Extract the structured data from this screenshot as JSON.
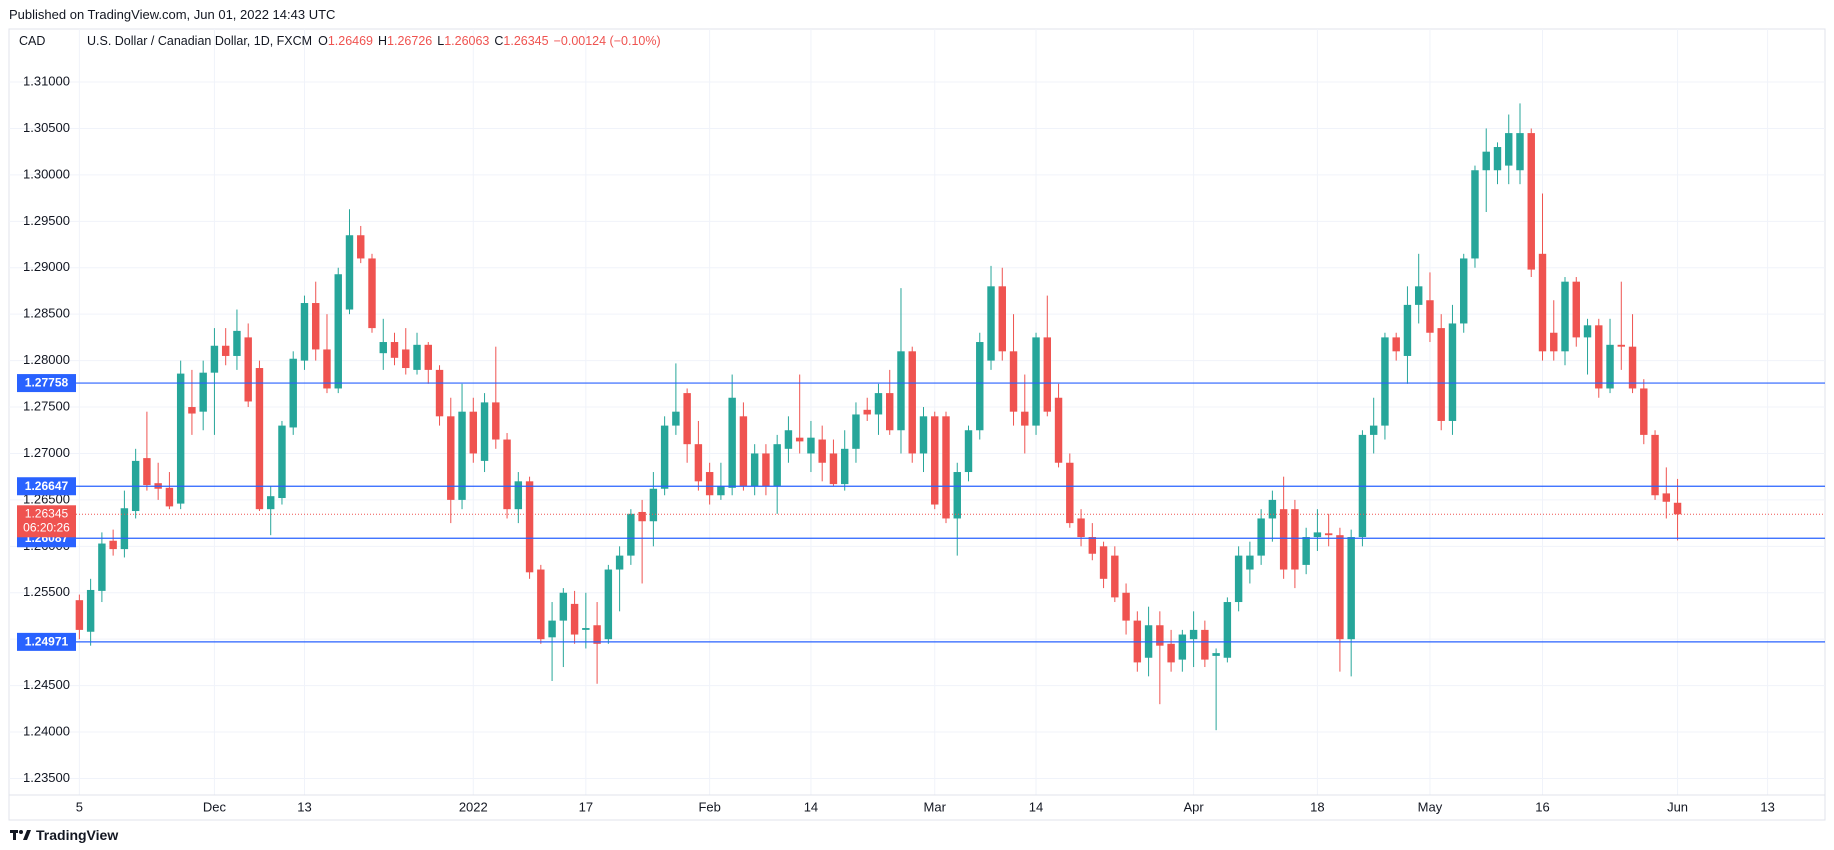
{
  "header": {
    "published": "Published on TradingView.com, Jun 01, 2022 14:43 UTC"
  },
  "chart_data": {
    "type": "candlestick",
    "currency": "CAD",
    "title": "U.S. Dollar / Canadian Dollar, 1D, FXCM",
    "ohlc_legend": [
      {
        "key": "O",
        "value": 1.26469
      },
      {
        "key": "H",
        "value": 1.26726
      },
      {
        "key": "L",
        "value": 1.26063
      },
      {
        "key": "C",
        "value": 1.26345
      }
    ],
    "change": "−0.00124 (−0.10%)",
    "open": [
      1.2542,
      1.2508,
      1.2552,
      1.2606,
      1.2597,
      1.2638,
      1.2695,
      1.2668,
      1.2663,
      1.2646,
      1.275,
      1.2745,
      1.2787,
      1.2816,
      1.2805,
      1.2825,
      1.2792,
      1.264,
      1.2652,
      1.2728,
      1.28,
      1.2862,
      1.2812,
      1.277,
      1.2855,
      1.2935,
      1.291,
      1.2808,
      1.282,
      1.2812,
      1.279,
      1.2817,
      1.279,
      1.274,
      1.265,
      1.2745,
      1.2692,
      1.2755,
      1.2715,
      1.264,
      1.267,
      1.2575,
      1.2502,
      1.252,
      1.2538,
      1.251,
      1.2515,
      1.25,
      1.2575,
      1.259,
      1.2637,
      1.2627,
      1.2662,
      1.273,
      1.2765,
      1.271,
      1.268,
      1.2655,
      1.2663,
      1.274,
      1.2665,
      1.27,
      1.2665,
      1.2705,
      1.2717,
      1.27,
      1.2715,
      1.27,
      1.2667,
      1.2705,
      1.2747,
      1.2742,
      1.2765,
      1.2725,
      1.281,
      1.27,
      1.274,
      1.274,
      1.263,
      1.268,
      1.2725,
      1.28,
      1.288,
      1.281,
      1.2745,
      1.273,
      1.2825,
      1.276,
      1.269,
      1.263,
      1.261,
      1.26,
      1.259,
      1.255,
      1.252,
      1.248,
      1.2515,
      1.2495,
      1.2478,
      1.25,
      1.251,
      1.2482,
      1.248,
      1.254,
      1.2575,
      1.259,
      1.263,
      1.264,
      1.264,
      1.258,
      1.261,
      1.2614,
      1.2612,
      1.25,
      1.261,
      1.272,
      1.273,
      1.2825,
      1.2805,
      1.286,
      1.2865,
      1.2835,
      1.2735,
      1.284,
      1.291,
      1.3005,
      1.3005,
      1.301,
      1.3005,
      1.3045,
      1.2915,
      1.283,
      1.281,
      1.2885,
      1.2825,
      1.2838,
      1.277,
      1.2817,
      1.2815,
      1.277,
      1.272,
      1.2657,
      1.26469
    ],
    "high": [
      1.2548,
      1.2565,
      1.2615,
      1.2618,
      1.266,
      1.2705,
      1.2745,
      1.269,
      1.268,
      1.28,
      1.279,
      1.28,
      1.2835,
      1.2835,
      1.2855,
      1.284,
      1.28,
      1.2665,
      1.2735,
      1.281,
      1.287,
      1.2885,
      1.285,
      1.29,
      1.2963,
      1.2945,
      1.2915,
      1.2845,
      1.283,
      1.2835,
      1.283,
      1.282,
      1.2795,
      1.276,
      1.2775,
      1.276,
      1.2765,
      1.2815,
      1.2722,
      1.268,
      1.2675,
      1.258,
      1.254,
      1.2555,
      1.2552,
      1.255,
      1.254,
      1.258,
      1.26,
      1.264,
      1.265,
      1.268,
      1.274,
      1.2797,
      1.277,
      1.2735,
      1.269,
      1.269,
      1.2785,
      1.2755,
      1.271,
      1.271,
      1.272,
      1.274,
      1.2785,
      1.2735,
      1.273,
      1.2715,
      1.2725,
      1.2755,
      1.276,
      1.2775,
      1.279,
      1.2878,
      1.2815,
      1.275,
      1.2745,
      1.2745,
      1.269,
      1.273,
      1.283,
      1.2902,
      1.29,
      1.285,
      1.2785,
      1.283,
      1.287,
      1.2775,
      1.27,
      1.264,
      1.2625,
      1.2605,
      1.26,
      1.256,
      1.253,
      1.2535,
      1.253,
      1.251,
      1.251,
      1.253,
      1.252,
      1.249,
      1.2545,
      1.26,
      1.2605,
      1.264,
      1.266,
      1.2675,
      1.265,
      1.262,
      1.264,
      1.2635,
      1.262,
      1.2618,
      1.2725,
      1.276,
      1.283,
      1.283,
      1.288,
      1.2915,
      1.2895,
      1.285,
      1.286,
      1.2915,
      1.301,
      1.305,
      1.3035,
      1.3065,
      1.3077,
      1.305,
      1.298,
      1.2865,
      1.289,
      1.289,
      1.2845,
      1.2845,
      1.2845,
      1.2885,
      1.285,
      1.278,
      1.2725,
      1.2685,
      1.26726
    ],
    "low": [
      1.25,
      1.2493,
      1.254,
      1.259,
      1.2588,
      1.263,
      1.266,
      1.265,
      1.264,
      1.264,
      1.272,
      1.2725,
      1.272,
      1.2795,
      1.279,
      1.275,
      1.2638,
      1.2612,
      1.2645,
      1.272,
      1.279,
      1.28,
      1.2765,
      1.2765,
      1.285,
      1.2905,
      1.283,
      1.279,
      1.2795,
      1.2785,
      1.2785,
      1.2775,
      1.273,
      1.2625,
      1.264,
      1.269,
      1.268,
      1.2705,
      1.263,
      1.2625,
      1.2565,
      1.2495,
      1.2455,
      1.247,
      1.2495,
      1.249,
      1.2452,
      1.2495,
      1.253,
      1.258,
      1.256,
      1.26,
      1.2655,
      1.272,
      1.269,
      1.266,
      1.2645,
      1.265,
      1.2655,
      1.266,
      1.2655,
      1.2655,
      1.2635,
      1.269,
      1.27,
      1.268,
      1.267,
      1.2665,
      1.266,
      1.269,
      1.2735,
      1.272,
      1.272,
      1.27,
      1.269,
      1.268,
      1.264,
      1.2625,
      1.259,
      1.267,
      1.2715,
      1.279,
      1.28,
      1.273,
      1.27,
      1.272,
      1.274,
      1.2685,
      1.262,
      1.26,
      1.2585,
      1.2555,
      1.254,
      1.2505,
      1.2465,
      1.246,
      1.243,
      1.2465,
      1.2465,
      1.247,
      1.247,
      1.2402,
      1.2475,
      1.253,
      1.256,
      1.258,
      1.2605,
      1.2565,
      1.2555,
      1.257,
      1.2595,
      1.26,
      1.2465,
      1.246,
      1.26,
      1.27,
      1.2715,
      1.28,
      1.2775,
      1.284,
      1.282,
      1.2725,
      1.272,
      1.283,
      1.29,
      1.296,
      1.299,
      1.299,
      1.299,
      1.289,
      1.28,
      1.28,
      1.2795,
      1.2815,
      1.2785,
      1.276,
      1.2765,
      1.279,
      1.2765,
      1.271,
      1.265,
      1.263,
      1.26063
    ],
    "close": [
      1.251,
      1.2553,
      1.2603,
      1.2597,
      1.2641,
      1.2692,
      1.2666,
      1.2662,
      1.2643,
      1.2786,
      1.2743,
      1.2787,
      1.2816,
      1.2805,
      1.2832,
      1.2756,
      1.264,
      1.2654,
      1.273,
      1.2802,
      1.2862,
      1.2812,
      1.277,
      1.2893,
      1.2935,
      1.291,
      1.2835,
      1.282,
      1.2803,
      1.2792,
      1.2817,
      1.279,
      1.274,
      1.265,
      1.2745,
      1.27,
      1.2755,
      1.2715,
      1.264,
      1.267,
      1.2572,
      1.25,
      1.252,
      1.255,
      1.2505,
      1.2512,
      1.2495,
      1.2575,
      1.259,
      1.2635,
      1.2627,
      1.2662,
      1.273,
      1.2745,
      1.271,
      1.267,
      1.2655,
      1.2665,
      1.276,
      1.2665,
      1.27,
      1.2665,
      1.271,
      1.2725,
      1.2713,
      1.2717,
      1.269,
      1.2667,
      1.2705,
      1.2742,
      1.2742,
      1.2765,
      1.2725,
      1.281,
      1.27,
      1.274,
      1.2645,
      1.263,
      1.268,
      1.2725,
      1.282,
      1.288,
      1.281,
      1.2745,
      1.273,
      1.2825,
      1.2745,
      1.269,
      1.2625,
      1.261,
      1.2592,
      1.2565,
      1.2545,
      1.252,
      1.2475,
      1.2515,
      1.2493,
      1.2475,
      1.2505,
      1.251,
      1.2478,
      1.2485,
      1.254,
      1.259,
      1.259,
      1.263,
      1.265,
      1.2575,
      1.2575,
      1.261,
      1.2615,
      1.2612,
      1.25,
      1.261,
      1.272,
      1.273,
      1.2825,
      1.281,
      1.286,
      1.288,
      1.283,
      1.2735,
      1.284,
      1.291,
      1.3005,
      1.3025,
      1.303,
      1.3045,
      1.3045,
      1.2898,
      1.281,
      1.281,
      1.2885,
      1.2825,
      1.2838,
      1.277,
      1.2817,
      1.2815,
      1.277,
      1.272,
      1.2655,
      1.2648,
      1.26345
    ],
    "up_color": "#26a69a",
    "down_color": "#ef5350",
    "xlim": [
      -0.3,
      155.1
    ],
    "xticks": [
      {
        "value": 0,
        "label": "5"
      },
      {
        "value": 12,
        "label": "Dec"
      },
      {
        "value": 20,
        "label": "13"
      },
      {
        "value": 35,
        "label": "2022"
      },
      {
        "value": 45,
        "label": "17"
      },
      {
        "value": 56,
        "label": "Feb"
      },
      {
        "value": 65,
        "label": "14"
      },
      {
        "value": 76,
        "label": "Mar"
      },
      {
        "value": 85,
        "label": "14"
      },
      {
        "value": 99,
        "label": "Apr"
      },
      {
        "value": 110,
        "label": "18"
      },
      {
        "value": 120,
        "label": "May"
      },
      {
        "value": 130,
        "label": "16"
      },
      {
        "value": 142,
        "label": "Jun"
      },
      {
        "value": 150,
        "label": "13"
      }
    ],
    "ylim": [
      1.23322,
      1.31571
    ],
    "yticks": [
      {
        "value": 1.235,
        "label": "1.23500"
      },
      {
        "value": 1.24,
        "label": "1.24000"
      },
      {
        "value": 1.245,
        "label": "1.24500"
      },
      {
        "value": 1.25,
        "label": "1.25000"
      },
      {
        "value": 1.255,
        "label": "1.25500"
      },
      {
        "value": 1.26,
        "label": "1.26000"
      },
      {
        "value": 1.265,
        "label": "1.26500"
      },
      {
        "value": 1.27,
        "label": "1.27000"
      },
      {
        "value": 1.275,
        "label": "1.27500"
      },
      {
        "value": 1.28,
        "label": "1.28000"
      },
      {
        "value": 1.285,
        "label": "1.28500"
      },
      {
        "value": 1.29,
        "label": "1.29000"
      },
      {
        "value": 1.295,
        "label": "1.29500"
      },
      {
        "value": 1.3,
        "label": "1.30000"
      },
      {
        "value": 1.305,
        "label": "1.30500"
      },
      {
        "value": 1.31,
        "label": "1.31000"
      }
    ],
    "grid": true,
    "horizontal_lines": [
      {
        "value": 1.27758,
        "color": "#2962ff"
      },
      {
        "value": 1.26647,
        "color": "#2962ff"
      },
      {
        "value": 1.26087,
        "color": "#2962ff"
      },
      {
        "value": 1.24971,
        "color": "#2962ff"
      }
    ],
    "price_line": {
      "value": 1.26345,
      "countdown": "06:20:26",
      "color": "#ef5350"
    }
  },
  "footer": {
    "brand": "TradingView"
  }
}
